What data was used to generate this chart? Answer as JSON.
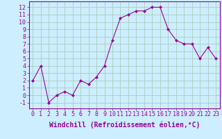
{
  "x": [
    0,
    1,
    2,
    3,
    4,
    5,
    6,
    7,
    8,
    9,
    10,
    11,
    12,
    13,
    14,
    15,
    16,
    17,
    18,
    19,
    20,
    21,
    22,
    23
  ],
  "y": [
    2.0,
    4.0,
    -1.0,
    0.0,
    0.5,
    0.0,
    2.0,
    1.5,
    2.5,
    4.0,
    7.5,
    10.5,
    11.0,
    11.5,
    11.5,
    12.0,
    12.0,
    9.0,
    7.5,
    7.0,
    7.0,
    5.0,
    6.5,
    5.0
  ],
  "line_color": "#990099",
  "marker": "D",
  "marker_size": 2,
  "bg_color": "#cceeff",
  "grid_color": "#aaccbb",
  "xlabel": "Windchill (Refroidissement éolien,°C)",
  "ylabel_ticks": [
    -1,
    0,
    1,
    2,
    3,
    4,
    5,
    6,
    7,
    8,
    9,
    10,
    11,
    12
  ],
  "xlim": [
    -0.5,
    23.5
  ],
  "ylim": [
    -1.8,
    12.8
  ],
  "xlabel_fontsize": 7,
  "tick_fontsize": 6
}
